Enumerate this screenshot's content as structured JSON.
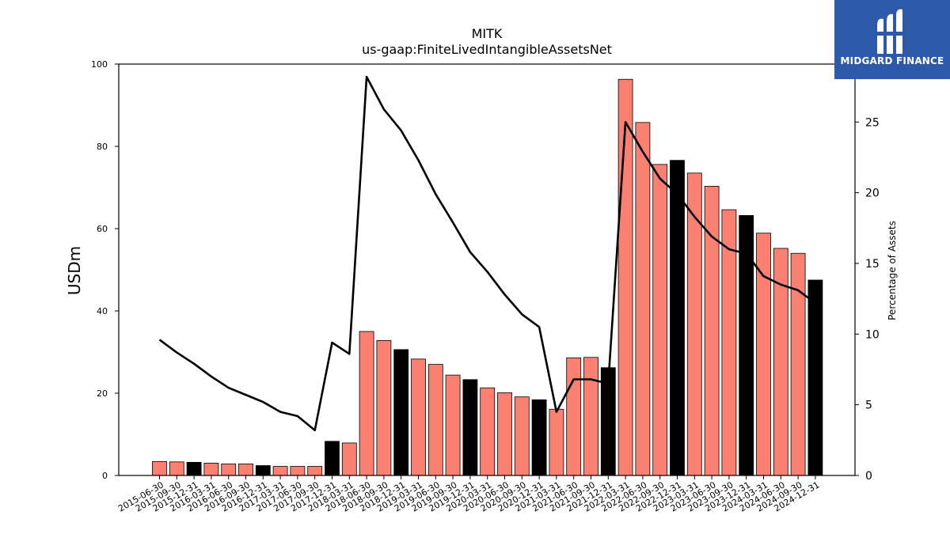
{
  "chart_data": {
    "type": "bar",
    "title": "MITK",
    "subtitle": "us-gaap:FiniteLivedIntangibleAssetsNet",
    "ylabel": "USDm",
    "y2label": "Percentage of Assets",
    "ylim": [
      0,
      100
    ],
    "y2lim": [
      0,
      29.1
    ],
    "yticks": [
      0,
      20,
      40,
      60,
      80,
      100
    ],
    "y2ticks": [
      0,
      5,
      10,
      15,
      20,
      25
    ],
    "categories": [
      "2015-06-30",
      "2015-09-30",
      "2015-12-31",
      "2016-03-31",
      "2016-06-30",
      "2016-09-30",
      "2016-12-31",
      "2017-03-31",
      "2017-06-30",
      "2017-09-30",
      "2017-12-31",
      "2018-03-31",
      "2018-06-30",
      "2018-09-30",
      "2018-12-31",
      "2019-03-31",
      "2019-06-30",
      "2019-09-30",
      "2019-12-31",
      "2020-03-31",
      "2020-06-30",
      "2020-09-30",
      "2020-12-31",
      "2021-03-31",
      "2021-06-30",
      "2021-09-30",
      "2021-12-31",
      "2022-03-31",
      "2022-06-30",
      "2022-09-30",
      "2022-12-31",
      "2023-03-31",
      "2023-06-30",
      "2023-09-30",
      "2023-12-31",
      "2024-03-31",
      "2024-06-30",
      "2024-09-30",
      "2024-12-31"
    ],
    "series": [
      {
        "type": "bar",
        "values": [
          3.4,
          3.3,
          3.2,
          3.0,
          2.8,
          2.8,
          2.4,
          2.2,
          2.2,
          2.2,
          8.3,
          7.9,
          35.0,
          32.8,
          30.6,
          28.3,
          27.0,
          24.4,
          23.3,
          21.3,
          20.1,
          19.1,
          18.4,
          16.1,
          28.6,
          28.7,
          26.2,
          96.3,
          85.8,
          75.6,
          76.6,
          73.5,
          70.3,
          64.6,
          63.2,
          58.9,
          55.2,
          54.0,
          47.5
        ],
        "colors": [
          "#fa8072",
          "#fa8072",
          "#000000",
          "#fa8072",
          "#fa8072",
          "#fa8072",
          "#000000",
          "#fa8072",
          "#fa8072",
          "#fa8072",
          "#000000",
          "#fa8072",
          "#fa8072",
          "#fa8072",
          "#000000",
          "#fa8072",
          "#fa8072",
          "#fa8072",
          "#000000",
          "#fa8072",
          "#fa8072",
          "#fa8072",
          "#000000",
          "#fa8072",
          "#fa8072",
          "#fa8072",
          "#000000",
          "#fa8072",
          "#fa8072",
          "#fa8072",
          "#000000",
          "#fa8072",
          "#fa8072",
          "#fa8072",
          "#000000",
          "#fa8072",
          "#fa8072",
          "#fa8072",
          "#000000"
        ]
      },
      {
        "type": "line",
        "axis": "right",
        "color": "#000000",
        "values": [
          9.6,
          8.7,
          7.9,
          7.0,
          6.2,
          5.7,
          5.2,
          4.5,
          4.2,
          3.2,
          9.4,
          8.6,
          28.2,
          25.9,
          24.4,
          22.3,
          19.9,
          17.9,
          15.8,
          14.4,
          12.8,
          11.4,
          10.5,
          4.5,
          6.8,
          6.8,
          6.5,
          25.0,
          22.9,
          21.0,
          19.9,
          18.3,
          16.9,
          16.0,
          15.7,
          14.1,
          13.5,
          13.1,
          12.2
        ]
      }
    ],
    "grid": false,
    "legend": "none"
  },
  "logo": {
    "text": "MIDGARD FINANCE",
    "icon": "midgard-logo-icon",
    "background": "#2c5aa8"
  }
}
